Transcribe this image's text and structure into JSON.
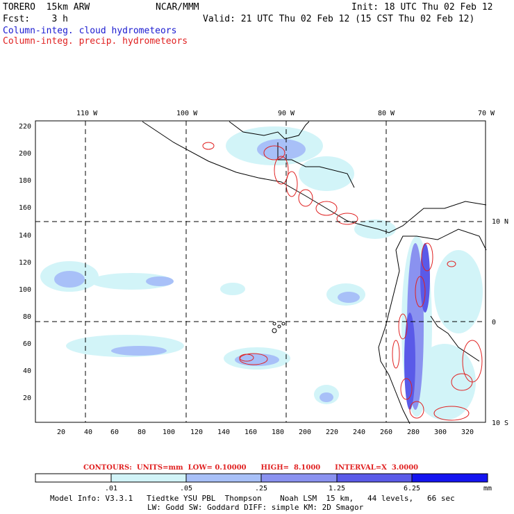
{
  "header": {
    "model": "TORERO  15km ARW",
    "org": "NCAR/MMM",
    "init": "Init: 18 UTC Thu 02 Feb 12",
    "fcst": "Fcst:    3 h",
    "valid": "Valid: 21 UTC Thu 02 Feb 12 (15 CST Thu 02 Feb 12)",
    "field1": "Column-integ. cloud hydrometeors",
    "field2": "Column-integ. precip. hydrometeors"
  },
  "colors": {
    "field1": "#1a1ad0",
    "field2": "#e02020",
    "contour": "#e02020"
  },
  "map": {
    "lon_labels": [
      "110 W",
      "100 W",
      "90 W",
      "80 W",
      "70 W"
    ],
    "lat_labels": [
      "10 N",
      "0",
      "10 S"
    ],
    "y_ticks": [
      "220",
      "200",
      "180",
      "160",
      "140",
      "120",
      "100",
      "80",
      "60",
      "40",
      "20"
    ],
    "x_ticks": [
      "20",
      "40",
      "60",
      "80",
      "100",
      "120",
      "140",
      "160",
      "180",
      "200",
      "220",
      "240",
      "260",
      "280",
      "300",
      "320"
    ]
  },
  "contours_line": "CONTOURS:  UNITS=mm  LOW= 0.10000      HIGH=  8.1000      INTERVAL=X  3.0000",
  "legend": {
    "labels": [
      ".01",
      ".05",
      ".25",
      "1.25",
      "6.25"
    ],
    "unit": "mm",
    "colors": [
      "#ffffff",
      "#d2f4f8",
      "#a8c0f8",
      "#8a92f0",
      "#5a5ae8",
      "#3838e0",
      "#1414f0"
    ]
  },
  "footer": {
    "line1": "Model Info: V3.3.1   Tiedtke YSU PBL  Thompson    Noah LSM  15 km,   44 levels,   66 sec",
    "line2": "LW: Godd SW: Goddard DIFF: simple KM: 2D Smagor"
  }
}
